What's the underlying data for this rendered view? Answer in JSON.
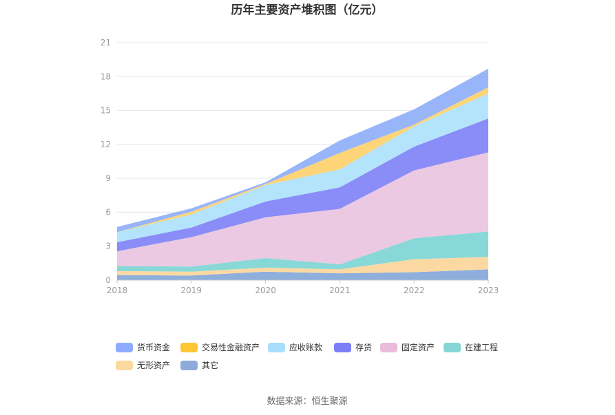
{
  "chart_data": {
    "type": "area",
    "stacked": true,
    "title": "历年主要资产堆积图（亿元）",
    "x": [
      "2018",
      "2019",
      "2020",
      "2021",
      "2022",
      "2023"
    ],
    "ylim": [
      0,
      21
    ],
    "yticks": [
      "0",
      "3",
      "6",
      "9",
      "12",
      "15",
      "18",
      "21"
    ],
    "grid": true,
    "legend_position": "bottom",
    "series": [
      {
        "name": "其它",
        "color": "#8eaedc",
        "values": [
          0.45,
          0.4,
          0.75,
          0.6,
          0.7,
          0.95
        ]
      },
      {
        "name": "无形资产",
        "color": "#fcd9a2",
        "values": [
          0.35,
          0.35,
          0.35,
          0.35,
          1.15,
          1.1
        ]
      },
      {
        "name": "在建工程",
        "color": "#89d8d8",
        "values": [
          0.45,
          0.45,
          0.85,
          0.45,
          1.85,
          2.25
        ]
      },
      {
        "name": "固定资产",
        "color": "#ecc9e3",
        "values": [
          1.3,
          2.6,
          3.6,
          4.9,
          6.0,
          7.0
        ]
      },
      {
        "name": "存货",
        "color": "#8a8cf7",
        "values": [
          0.8,
          0.85,
          1.4,
          1.9,
          2.1,
          3.0
        ]
      },
      {
        "name": "应收账款",
        "color": "#b3e4fc",
        "values": [
          0.9,
          1.15,
          1.45,
          1.6,
          1.8,
          2.2
        ]
      },
      {
        "name": "交易性金融资产",
        "color": "#fdd478",
        "values": [
          0.0,
          0.25,
          0.1,
          1.45,
          0.15,
          0.55
        ]
      },
      {
        "name": "货币资金",
        "color": "#99b5fa",
        "values": [
          0.45,
          0.3,
          0.15,
          1.1,
          1.35,
          1.65
        ]
      }
    ]
  },
  "legend": [
    {
      "label": "货币资金",
      "color": "#8eacff"
    },
    {
      "label": "交易性金融资产",
      "color": "#fec635"
    },
    {
      "label": "应收账款",
      "color": "#a8defc"
    },
    {
      "label": "存货",
      "color": "#7c7ef5"
    },
    {
      "label": "固定资产",
      "color": "#ebbbdc"
    },
    {
      "label": "在建工程",
      "color": "#84d6d6"
    },
    {
      "label": "无形资产",
      "color": "#fcd99e"
    },
    {
      "label": "其它",
      "color": "#8cabdb"
    }
  ],
  "source_text": "数据来源：恒生聚源"
}
